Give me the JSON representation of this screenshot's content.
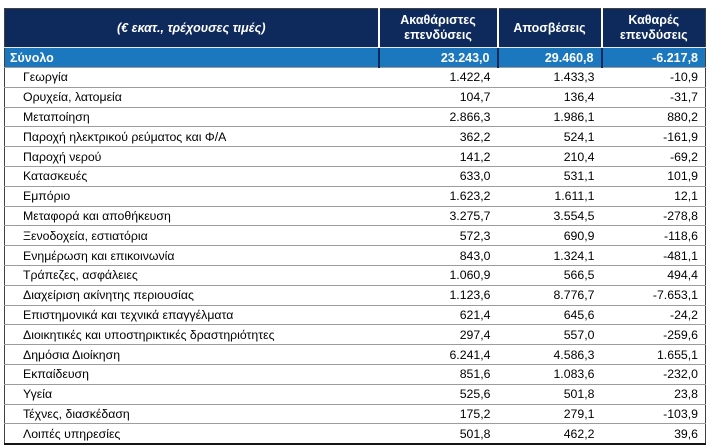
{
  "table": {
    "unit_label": "(€ εκατ., τρέχουσες τιμές)",
    "columns": [
      "Ακαθάριστες επενδύσεις",
      "Αποσβέσεις",
      "Καθαρές επενδύσεις"
    ],
    "total_row": {
      "label": "Σύνολο",
      "values": [
        "23.243,0",
        "29.460,8",
        "-6.217,8"
      ]
    },
    "rows": [
      {
        "label": "Γεωργία",
        "values": [
          "1.422,4",
          "1.433,3",
          "-10,9"
        ]
      },
      {
        "label": "Ορυχεία, λατομεία",
        "values": [
          "104,7",
          "136,4",
          "-31,7"
        ]
      },
      {
        "label": "Μεταποίηση",
        "values": [
          "2.866,3",
          "1.986,1",
          "880,2"
        ]
      },
      {
        "label": "Παροχή ηλεκτρικού ρεύματος και Φ/Α",
        "values": [
          "362,2",
          "524,1",
          "-161,9"
        ]
      },
      {
        "label": "Παροχή νερού",
        "values": [
          "141,2",
          "210,4",
          "-69,2"
        ]
      },
      {
        "label": "Κατασκευές",
        "values": [
          "633,0",
          "531,1",
          "101,9"
        ]
      },
      {
        "label": "Εμπόριο",
        "values": [
          "1.623,2",
          "1.611,1",
          "12,1"
        ]
      },
      {
        "label": "Μεταφορά και αποθήκευση",
        "values": [
          "3.275,7",
          "3.554,5",
          "-278,8"
        ]
      },
      {
        "label": "Ξενοδοχεία, εστιατόρια",
        "values": [
          "572,3",
          "690,9",
          "-118,6"
        ]
      },
      {
        "label": "Ενημέρωση και επικοινωνία",
        "values": [
          "843,0",
          "1.324,1",
          "-481,1"
        ]
      },
      {
        "label": "Τράπεζες, ασφάλειες",
        "values": [
          "1.060,9",
          "566,5",
          "494,4"
        ]
      },
      {
        "label": "Διαχείριση ακίνητης περιουσίας",
        "values": [
          "1.123,6",
          "8.776,7",
          "-7.653,1"
        ]
      },
      {
        "label": "Επιστημονικά και τεχνικά επαγγέλματα",
        "values": [
          "621,4",
          "645,6",
          "-24,2"
        ]
      },
      {
        "label": "Διοικητικές και υποστηρικτικές δραστηριότητες",
        "values": [
          "297,4",
          "557,0",
          "-259,6"
        ]
      },
      {
        "label": "Δημόσια Διοίκηση",
        "values": [
          "6.241,4",
          "4.586,3",
          "1.655,1"
        ]
      },
      {
        "label": "Εκπαίδευση",
        "values": [
          "851,6",
          "1.083,6",
          "-232,0"
        ]
      },
      {
        "label": "Υγεία",
        "values": [
          "525,6",
          "501,8",
          "23,8"
        ]
      },
      {
        "label": "Τέχνες, διασκέδαση",
        "values": [
          "175,2",
          "279,1",
          "-103,9"
        ]
      },
      {
        "label": "Λοιπές υπηρεσίες",
        "values": [
          "501,8",
          "462,2",
          "39,6"
        ]
      }
    ],
    "colors": {
      "header_bg": "#0E295C",
      "total_bg": "#1B78BE",
      "gridline": "#9C9C9C",
      "outer_border": "#404040",
      "header_text": "#FFFFFF",
      "body_text": "#000000"
    }
  },
  "chart_data": {
    "type": "table",
    "title": "",
    "unit": "€ εκατ., τρέχουσες τιμές",
    "columns": [
      "Ακαθάριστες επενδύσεις",
      "Αποσβέσεις",
      "Καθαρές επενδύσεις"
    ],
    "categories": [
      "Σύνολο",
      "Γεωργία",
      "Ορυχεία, λατομεία",
      "Μεταποίηση",
      "Παροχή ηλεκτρικού ρεύματος και Φ/Α",
      "Παροχή νερού",
      "Κατασκευές",
      "Εμπόριο",
      "Μεταφορά και αποθήκευση",
      "Ξενοδοχεία, εστιατόρια",
      "Ενημέρωση και επικοινωνία",
      "Τράπεζες, ασφάλειες",
      "Διαχείριση ακίνητης περιουσίας",
      "Επιστημονικά και τεχνικά επαγγέλματα",
      "Διοικητικές και υποστηρικτικές δραστηριότητες",
      "Δημόσια Διοίκηση",
      "Εκπαίδευση",
      "Υγεία",
      "Τέχνες, διασκέδαση",
      "Λοιπές υπηρεσίες"
    ],
    "series": [
      {
        "name": "Ακαθάριστες επενδύσεις",
        "values": [
          23243.0,
          1422.4,
          104.7,
          2866.3,
          362.2,
          141.2,
          633.0,
          1623.2,
          3275.7,
          572.3,
          843.0,
          1060.9,
          1123.6,
          621.4,
          297.4,
          6241.4,
          851.6,
          525.6,
          175.2,
          501.8
        ]
      },
      {
        "name": "Αποσβέσεις",
        "values": [
          29460.8,
          1433.3,
          136.4,
          1986.1,
          524.1,
          210.4,
          531.1,
          1611.1,
          3554.5,
          690.9,
          1324.1,
          566.5,
          8776.7,
          645.6,
          557.0,
          4586.3,
          1083.6,
          501.8,
          279.1,
          462.2
        ]
      },
      {
        "name": "Καθαρές επενδύσεις",
        "values": [
          -6217.8,
          -10.9,
          -31.7,
          880.2,
          -161.9,
          -69.2,
          101.9,
          12.1,
          -278.8,
          -118.6,
          -481.1,
          494.4,
          -7653.1,
          -24.2,
          -259.6,
          1655.1,
          -232.0,
          23.8,
          -103.9,
          39.6
        ]
      }
    ]
  }
}
